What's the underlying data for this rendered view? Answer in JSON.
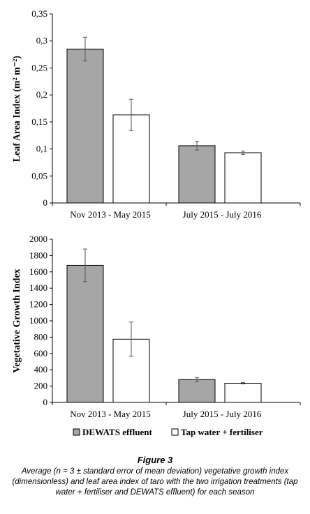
{
  "chart_data": [
    {
      "type": "bar",
      "categories": [
        "Nov 2013 - May 2015",
        "July 2015 -  July 2016"
      ],
      "series": [
        {
          "name": "DEWATS effluent",
          "values": [
            0.285,
            0.106
          ],
          "errors": [
            0.022,
            0.008
          ],
          "color": "#a6a6a6"
        },
        {
          "name": "Tap water + fertiliser",
          "values": [
            0.163,
            0.093
          ],
          "errors": [
            0.029,
            0.003
          ],
          "color": "#ffffff"
        }
      ],
      "ylabel": "Leaf Area Index (m² m⁻²)",
      "ylim": [
        0,
        0.35
      ],
      "yticks": [
        "0",
        "0,05",
        "0,1",
        "0,15",
        "0,2",
        "0,25",
        "0,3",
        "0,35"
      ],
      "grid": false
    },
    {
      "type": "bar",
      "categories": [
        "Nov 2013 - May 2015",
        "July 2015 -  July 2016"
      ],
      "series": [
        {
          "name": "DEWATS effluent",
          "values": [
            1680,
            280
          ],
          "errors": [
            200,
            25
          ],
          "color": "#a6a6a6"
        },
        {
          "name": "Tap water + fertiliser",
          "values": [
            775,
            235
          ],
          "errors": [
            210,
            8
          ],
          "color": "#ffffff"
        }
      ],
      "ylabel": "Vegetative Growth Index",
      "ylim": [
        0,
        2000
      ],
      "yticks": [
        "0",
        "200",
        "400",
        "600",
        "800",
        "1000",
        "1200",
        "1400",
        "1600",
        "1800",
        "2000"
      ],
      "grid": false
    }
  ],
  "legend": {
    "placement": "bottom",
    "items": [
      {
        "label": "DEWATS effluent",
        "color": "#a6a6a6"
      },
      {
        "label": "Tap water + fertiliser",
        "color": "#ffffff"
      }
    ]
  },
  "caption": {
    "figure_label": "Figure 3",
    "text": "Average (n = 3 ± standard error of mean deviation) vegetative growth index (dimensionless) and leaf area index of taro with the two irrigation treatments (tap water + fertiliser and DEWATS effluent) for each season"
  }
}
